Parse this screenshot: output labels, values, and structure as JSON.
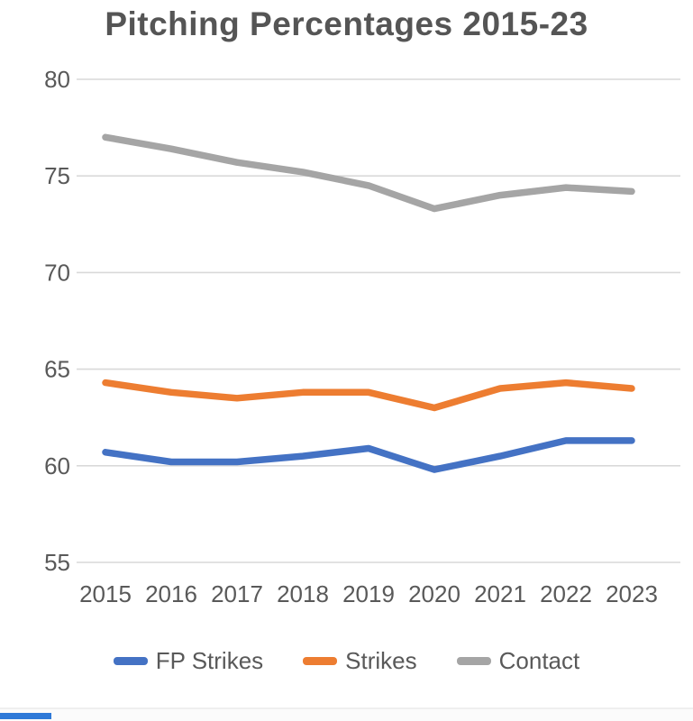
{
  "chart_data": {
    "type": "line",
    "title": "Pitching Percentages 2015-23",
    "categories": [
      "2015",
      "2016",
      "2017",
      "2018",
      "2019",
      "2020",
      "2021",
      "2022",
      "2023"
    ],
    "series": [
      {
        "name": "FP Strikes",
        "color": "#4472C4",
        "values": [
          60.7,
          60.2,
          60.2,
          60.5,
          60.9,
          59.8,
          60.5,
          61.3,
          61.3
        ]
      },
      {
        "name": "Strikes",
        "color": "#ED7D31",
        "values": [
          64.3,
          63.8,
          63.5,
          63.8,
          63.8,
          63.0,
          64.0,
          64.3,
          64.0
        ]
      },
      {
        "name": "Contact",
        "color": "#A5A5A5",
        "values": [
          77.0,
          76.4,
          75.7,
          75.2,
          74.5,
          73.3,
          74.0,
          74.4,
          74.2
        ]
      }
    ],
    "ylim": [
      55,
      80
    ],
    "yticks": [
      80,
      75,
      70,
      65,
      60,
      55
    ],
    "grid": true,
    "gridline_color": "#D9D9D9",
    "tick_label_color": "#595959",
    "legend_position": "bottom",
    "xlabel": "",
    "ylabel": ""
  },
  "footer": {
    "divider_color": "#efefef",
    "accent_bar_color": "#2E79D8"
  }
}
